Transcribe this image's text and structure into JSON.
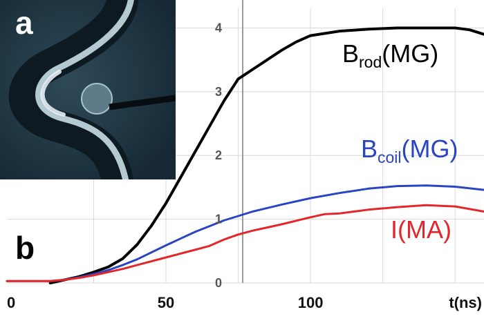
{
  "panels": {
    "a": "a",
    "b": "b"
  },
  "chart_data": {
    "type": "line",
    "x_ticks": [
      0,
      50,
      100
    ],
    "x_unit_label": "t(ns)",
    "y_ticks": [
      0,
      1,
      2,
      3,
      4
    ],
    "xlim": [
      -5,
      160
    ],
    "ylim": [
      0,
      4.2
    ],
    "grid": true,
    "series": [
      {
        "name": "B_rod(MG)",
        "label_main": "B",
        "label_sub": "rod",
        "label_suffix": "(MG)",
        "color": "#000000",
        "x": [
          10,
          15,
          20,
          25,
          30,
          35,
          40,
          45,
          50,
          55,
          60,
          65,
          70,
          75,
          80,
          85,
          90,
          95,
          100,
          110,
          120,
          130,
          140,
          150,
          155,
          160
        ],
        "y": [
          0,
          0.05,
          0.1,
          0.17,
          0.25,
          0.38,
          0.6,
          0.9,
          1.25,
          1.65,
          2.05,
          2.45,
          2.85,
          3.2,
          3.35,
          3.5,
          3.65,
          3.78,
          3.88,
          3.95,
          3.98,
          4.0,
          4.0,
          4.0,
          3.97,
          3.9
        ]
      },
      {
        "name": "B_coil(MG)",
        "label_main": "B",
        "label_sub": "coil",
        "label_suffix": "(MG)",
        "color": "#2a45c2",
        "x": [
          -5,
          10,
          15,
          20,
          25,
          30,
          35,
          40,
          50,
          60,
          70,
          80,
          90,
          100,
          110,
          120,
          130,
          140,
          150,
          160
        ],
        "y": [
          0.03,
          0.03,
          0.05,
          0.09,
          0.14,
          0.2,
          0.28,
          0.37,
          0.59,
          0.8,
          0.98,
          1.12,
          1.23,
          1.33,
          1.41,
          1.48,
          1.52,
          1.53,
          1.51,
          1.46
        ]
      },
      {
        "name": "I(MA)",
        "label_main": "I(MA)",
        "label_sub": "",
        "label_suffix": "",
        "color": "#e3262a",
        "x": [
          -5,
          10,
          15,
          20,
          25,
          30,
          35,
          40,
          50,
          60,
          65,
          70,
          75,
          80,
          90,
          100,
          105,
          110,
          120,
          130,
          140,
          150,
          160
        ],
        "y": [
          0.03,
          0.03,
          0.05,
          0.08,
          0.12,
          0.17,
          0.22,
          0.28,
          0.4,
          0.52,
          0.58,
          0.68,
          0.76,
          0.82,
          0.92,
          1.03,
          1.08,
          1.09,
          1.15,
          1.19,
          1.22,
          1.2,
          1.12
        ]
      }
    ]
  }
}
